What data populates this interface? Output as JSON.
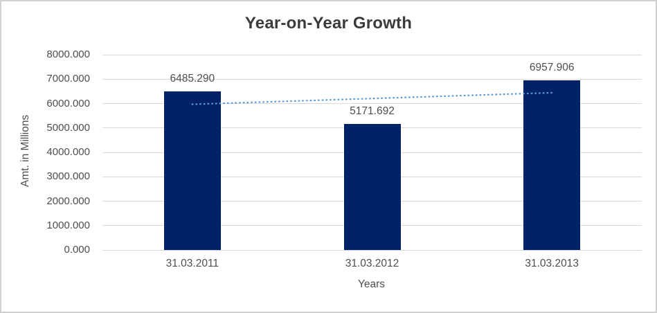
{
  "chart_data": {
    "type": "bar",
    "title": "Year-on-Year Growth",
    "xlabel": "Years",
    "ylabel": "Amt. in Millions",
    "categories": [
      "31.03.2011",
      "31.03.2012",
      "31.03.2013"
    ],
    "values": [
      6485.29,
      5171.692,
      6957.906
    ],
    "value_labels": [
      "6485.290",
      "5171.692",
      "6957.906"
    ],
    "ylim": [
      0,
      8000
    ],
    "y_tick_step": 1000,
    "y_tick_labels": [
      "0.000",
      "1000.000",
      "2000.000",
      "3000.000",
      "4000.000",
      "5000.000",
      "6000.000",
      "7000.000",
      "8000.000"
    ],
    "grid": "horizontal-only",
    "legend": "none",
    "trendline": {
      "type": "linear",
      "style": "dotted"
    },
    "colors": {
      "bar": "#012169",
      "trendline": "#5b9bd5",
      "gridline": "#d9d9d9",
      "title_text": "#3b3b3b",
      "axis_text": "#4d4d4d",
      "chart_border": "#d0d0d0",
      "background": "#ffffff"
    }
  }
}
